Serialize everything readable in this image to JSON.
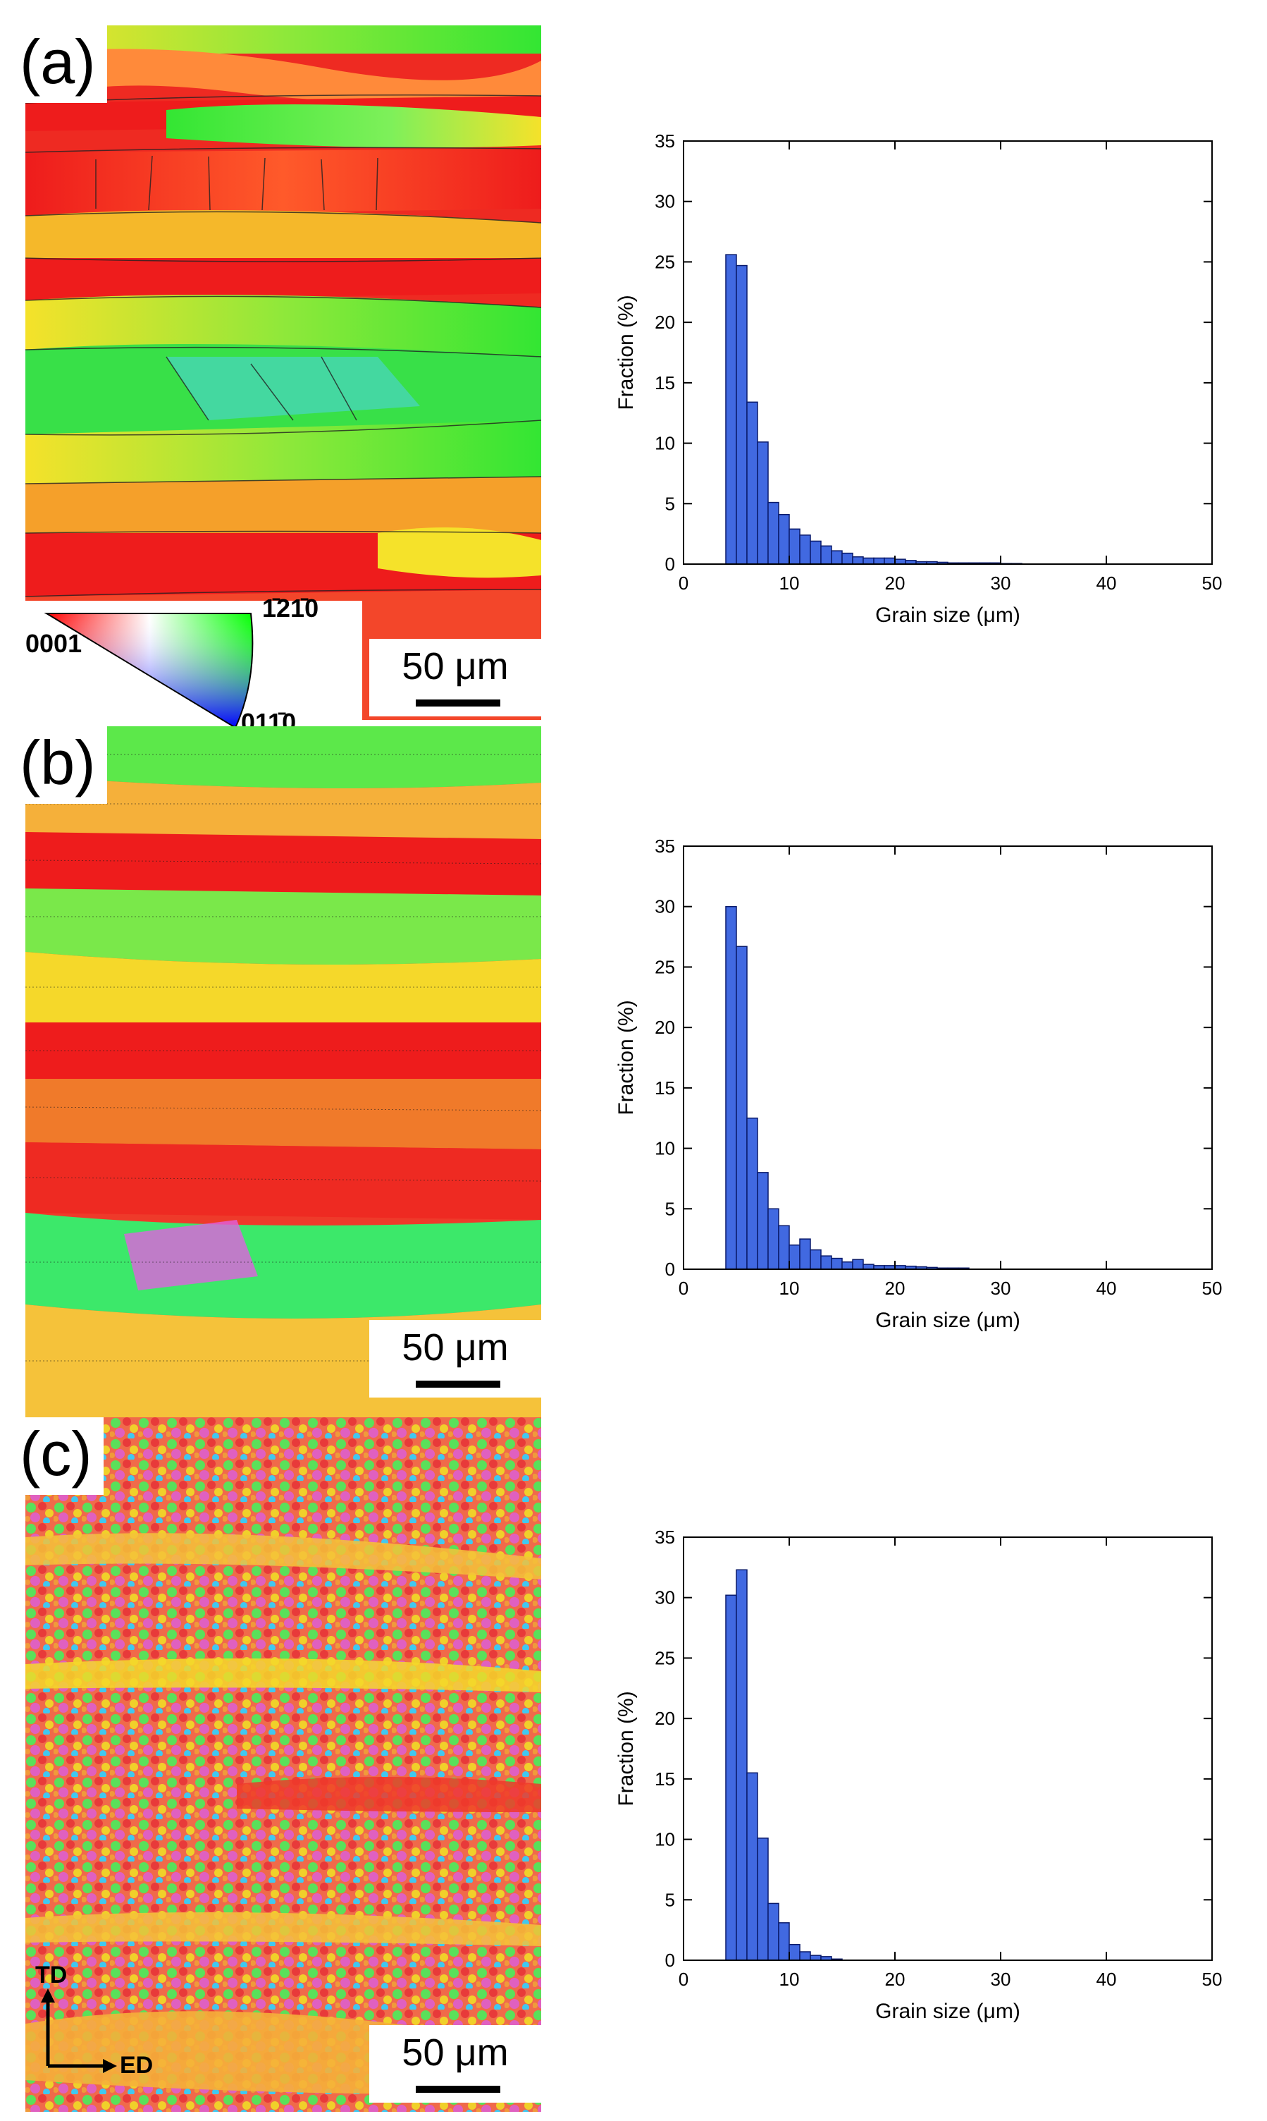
{
  "panels": [
    {
      "label": "(a)",
      "scale_bar": "50 μm"
    },
    {
      "label": "(b)",
      "scale_bar": "50 μm"
    },
    {
      "label": "(c)",
      "scale_bar": "50 μm"
    }
  ],
  "ipf_key": {
    "corner_0001": "0001",
    "corner_top": "1̄21̄0",
    "corner_bottom": "011̄0"
  },
  "axes_indicator": {
    "vertical": "TD",
    "horizontal": "ED"
  },
  "colors": {
    "bar_fill": "#4169e1",
    "bar_edge": "#0a1a6a",
    "red": "#ee1c1c",
    "green": "#33e633",
    "yellow": "#f5e22a",
    "orange": "#ff9a3c"
  },
  "chart_data": [
    {
      "type": "bar",
      "xlabel": "Grain size (μm)",
      "ylabel": "Fraction (%)",
      "xlim": [
        0,
        50
      ],
      "ylim": [
        0,
        35
      ],
      "xticks": [
        0,
        10,
        20,
        30,
        40,
        50
      ],
      "yticks": [
        0,
        5,
        10,
        15,
        20,
        25,
        30,
        35
      ],
      "bin_width": 1,
      "x": [
        4.5,
        5.5,
        6.5,
        7.5,
        8.5,
        9.5,
        10.5,
        11.5,
        12.5,
        13.5,
        14.5,
        15.5,
        16.5,
        17.5,
        18.5,
        19.5,
        20.5,
        21.5,
        22.5,
        23.5,
        24.5,
        25.5,
        26.5,
        27.5,
        28.5,
        29.5,
        30.5,
        31.5
      ],
      "values": [
        25.6,
        24.7,
        13.4,
        10.1,
        5.1,
        4.1,
        2.9,
        2.4,
        1.9,
        1.5,
        1.1,
        0.9,
        0.6,
        0.5,
        0.5,
        0.5,
        0.4,
        0.3,
        0.2,
        0.2,
        0.15,
        0.1,
        0.1,
        0.1,
        0.1,
        0.1,
        0.05,
        0.05
      ]
    },
    {
      "type": "bar",
      "xlabel": "Grain size (μm)",
      "ylabel": "Fraction (%)",
      "xlim": [
        0,
        50
      ],
      "ylim": [
        0,
        35
      ],
      "xticks": [
        0,
        10,
        20,
        30,
        40,
        50
      ],
      "yticks": [
        0,
        5,
        10,
        15,
        20,
        25,
        30,
        35
      ],
      "bin_width": 1,
      "x": [
        4.5,
        5.5,
        6.5,
        7.5,
        8.5,
        9.5,
        10.5,
        11.5,
        12.5,
        13.5,
        14.5,
        15.5,
        16.5,
        17.5,
        18.5,
        19.5,
        20.5,
        21.5,
        22.5,
        23.5,
        24.5,
        25.5,
        26.5
      ],
      "values": [
        30.0,
        26.7,
        12.5,
        8.0,
        5.0,
        3.6,
        2.0,
        2.5,
        1.6,
        1.1,
        0.9,
        0.6,
        0.8,
        0.4,
        0.3,
        0.3,
        0.3,
        0.25,
        0.2,
        0.15,
        0.1,
        0.1,
        0.1
      ]
    },
    {
      "type": "bar",
      "xlabel": "Grain size (μm)",
      "ylabel": "Fraction (%)",
      "xlim": [
        0,
        50
      ],
      "ylim": [
        0,
        35
      ],
      "xticks": [
        0,
        10,
        20,
        30,
        40,
        50
      ],
      "yticks": [
        0,
        5,
        10,
        15,
        20,
        25,
        30,
        35
      ],
      "bin_width": 1,
      "x": [
        4.5,
        5.5,
        6.5,
        7.5,
        8.5,
        9.5,
        10.5,
        11.5,
        12.5,
        13.5,
        14.5
      ],
      "values": [
        30.2,
        32.3,
        15.5,
        10.1,
        4.7,
        3.1,
        1.3,
        0.7,
        0.4,
        0.3,
        0.1
      ]
    }
  ]
}
